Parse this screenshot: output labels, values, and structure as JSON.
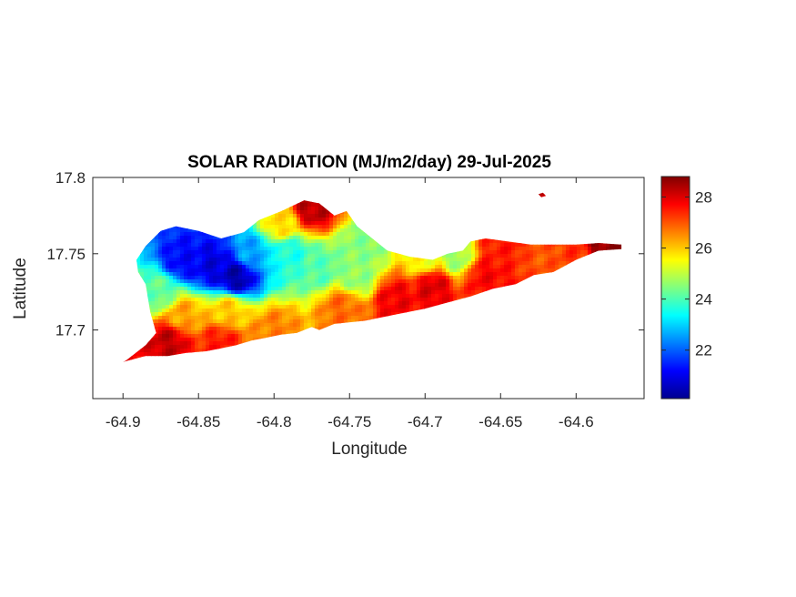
{
  "chart_data": {
    "type": "heatmap",
    "title": "SOLAR RADIATION (MJ/m2/day) 29-Jul-2025",
    "xlabel": "Longitude",
    "ylabel": "Latitude",
    "xlim": [
      -64.92,
      -64.555
    ],
    "ylim": [
      17.655,
      17.8
    ],
    "x_ticks": [
      -64.9,
      -64.85,
      -64.8,
      -64.75,
      -64.7,
      -64.65,
      -64.6
    ],
    "x_tick_labels": [
      "-64.9",
      "-64.85",
      "-64.8",
      "-64.75",
      "-64.7",
      "-64.65",
      "-64.6"
    ],
    "y_ticks": [
      17.7,
      17.75,
      17.8
    ],
    "y_tick_labels": [
      "17.7",
      "17.75",
      "17.8"
    ],
    "colorbar": {
      "colormap": "jet",
      "clim": [
        20.1,
        28.8
      ],
      "ticks": [
        22,
        24,
        26,
        28
      ],
      "tick_labels": [
        "22",
        "24",
        "26",
        "28"
      ]
    },
    "island_outline": [
      [
        -64.898,
        17.68
      ],
      [
        -64.885,
        17.69
      ],
      [
        -64.878,
        17.698
      ],
      [
        -64.882,
        17.712
      ],
      [
        -64.885,
        17.73
      ],
      [
        -64.89,
        17.738
      ],
      [
        -64.891,
        17.746
      ],
      [
        -64.885,
        17.755
      ],
      [
        -64.875,
        17.765
      ],
      [
        -64.865,
        17.768
      ],
      [
        -64.85,
        17.765
      ],
      [
        -64.835,
        17.76
      ],
      [
        -64.82,
        17.764
      ],
      [
        -64.81,
        17.772
      ],
      [
        -64.795,
        17.778
      ],
      [
        -64.78,
        17.785
      ],
      [
        -64.77,
        17.783
      ],
      [
        -64.76,
        17.775
      ],
      [
        -64.752,
        17.778
      ],
      [
        -64.745,
        17.768
      ],
      [
        -64.735,
        17.76
      ],
      [
        -64.725,
        17.752
      ],
      [
        -64.71,
        17.748
      ],
      [
        -64.695,
        17.746
      ],
      [
        -64.685,
        17.75
      ],
      [
        -64.675,
        17.752
      ],
      [
        -64.67,
        17.758
      ],
      [
        -64.66,
        17.76
      ],
      [
        -64.645,
        17.758
      ],
      [
        -64.63,
        17.756
      ],
      [
        -64.615,
        17.756
      ],
      [
        -64.6,
        17.756
      ],
      [
        -64.585,
        17.757
      ],
      [
        -64.57,
        17.756
      ],
      [
        -64.57,
        17.753
      ],
      [
        -64.585,
        17.752
      ],
      [
        -64.6,
        17.746
      ],
      [
        -64.615,
        17.738
      ],
      [
        -64.628,
        17.736
      ],
      [
        -64.64,
        17.73
      ],
      [
        -64.655,
        17.727
      ],
      [
        -64.67,
        17.722
      ],
      [
        -64.685,
        17.718
      ],
      [
        -64.7,
        17.714
      ],
      [
        -64.72,
        17.71
      ],
      [
        -64.74,
        17.706
      ],
      [
        -64.76,
        17.704
      ],
      [
        -64.77,
        17.7
      ],
      [
        -64.775,
        17.702
      ],
      [
        -64.785,
        17.698
      ],
      [
        -64.795,
        17.697
      ],
      [
        -64.805,
        17.695
      ],
      [
        -64.815,
        17.693
      ],
      [
        -64.825,
        17.69
      ],
      [
        -64.835,
        17.688
      ],
      [
        -64.845,
        17.686
      ],
      [
        -64.858,
        17.685
      ],
      [
        -64.87,
        17.683
      ],
      [
        -64.885,
        17.683
      ],
      [
        -64.9,
        17.679
      ]
    ],
    "islet_outline": [
      [
        -64.625,
        17.789
      ],
      [
        -64.622,
        17.79
      ],
      [
        -64.62,
        17.788
      ],
      [
        -64.623,
        17.787
      ]
    ],
    "field_anchors": [
      {
        "lon": -64.9,
        "lat": 17.682,
        "value": 27.8
      },
      {
        "lon": -64.87,
        "lat": 17.692,
        "value": 28.2
      },
      {
        "lon": -64.835,
        "lat": 17.692,
        "value": 27.5
      },
      {
        "lon": -64.8,
        "lat": 17.7,
        "value": 26.6
      },
      {
        "lon": -64.86,
        "lat": 17.71,
        "value": 26.3
      },
      {
        "lon": -64.83,
        "lat": 17.712,
        "value": 26.0
      },
      {
        "lon": -64.875,
        "lat": 17.725,
        "value": 24.2
      },
      {
        "lon": -64.86,
        "lat": 17.745,
        "value": 21.2
      },
      {
        "lon": -64.84,
        "lat": 17.742,
        "value": 20.9
      },
      {
        "lon": -64.825,
        "lat": 17.735,
        "value": 20.5
      },
      {
        "lon": -64.815,
        "lat": 17.75,
        "value": 22.6
      },
      {
        "lon": -64.79,
        "lat": 17.75,
        "value": 23.6
      },
      {
        "lon": -64.795,
        "lat": 17.77,
        "value": 25.8
      },
      {
        "lon": -64.775,
        "lat": 17.78,
        "value": 28.3
      },
      {
        "lon": -64.77,
        "lat": 17.74,
        "value": 24.1
      },
      {
        "lon": -64.745,
        "lat": 17.735,
        "value": 24.6
      },
      {
        "lon": -64.74,
        "lat": 17.755,
        "value": 24.5
      },
      {
        "lon": -64.755,
        "lat": 17.715,
        "value": 26.8
      },
      {
        "lon": -64.72,
        "lat": 17.72,
        "value": 27.8
      },
      {
        "lon": -64.695,
        "lat": 17.73,
        "value": 28.0
      },
      {
        "lon": -64.7,
        "lat": 17.745,
        "value": 25.5
      },
      {
        "lon": -64.68,
        "lat": 17.748,
        "value": 24.7
      },
      {
        "lon": -64.66,
        "lat": 17.735,
        "value": 27.7
      },
      {
        "lon": -64.65,
        "lat": 17.755,
        "value": 27.5
      },
      {
        "lon": -64.62,
        "lat": 17.748,
        "value": 27.0
      },
      {
        "lon": -64.6,
        "lat": 17.752,
        "value": 27.3
      },
      {
        "lon": -64.582,
        "lat": 17.755,
        "value": 28.7
      },
      {
        "lon": -64.623,
        "lat": 17.789,
        "value": 28.0
      }
    ],
    "colors": {
      "axis": "#262626",
      "no_data": "#ffffff"
    }
  }
}
